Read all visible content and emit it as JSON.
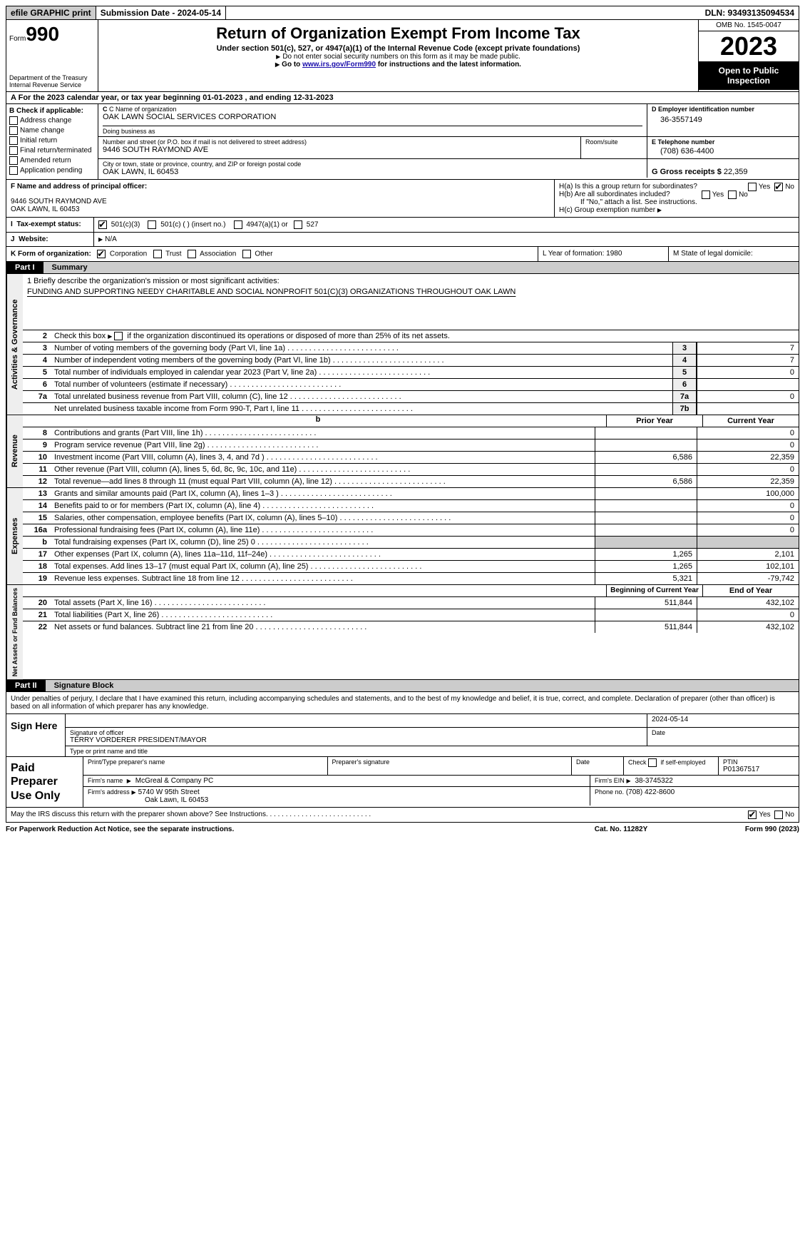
{
  "colors": {
    "black": "#000000",
    "white": "#ffffff",
    "shade": "#cccccc",
    "lightshade": "#eeeeee",
    "link": "#1a0dab"
  },
  "topbar": {
    "efile": "efile GRAPHIC print",
    "submission": "Submission Date - 2024-05-14",
    "dln": "DLN: 93493135094534"
  },
  "header": {
    "form_prefix": "Form",
    "form_num": "990",
    "dept": "Department of the Treasury Internal Revenue Service",
    "title": "Return of Organization Exempt From Income Tax",
    "subtitle": "Under section 501(c), 527, or 4947(a)(1) of the Internal Revenue Code (except private foundations)",
    "note1": "Do not enter social security numbers on this form as it may be made public.",
    "note2_prefix": "Go to ",
    "note2_link": "www.irs.gov/Form990",
    "note2_suffix": " for instructions and the latest information.",
    "omb": "OMB No. 1545-0047",
    "year": "2023",
    "open": "Open to Public Inspection"
  },
  "lineA": "For the 2023 calendar year, or tax year beginning 01-01-2023   , and ending 12-31-2023",
  "boxB": {
    "label": "B Check if applicable:",
    "items": [
      "Address change",
      "Name change",
      "Initial return",
      "Final return/terminated",
      "Amended return",
      "Application pending"
    ]
  },
  "boxC": {
    "name_label": "C Name of organization",
    "name": "OAK LAWN SOCIAL SERVICES CORPORATION",
    "dba_label": "Doing business as",
    "dba": "",
    "street_label": "Number and street (or P.O. box if mail is not delivered to street address)",
    "room_label": "Room/suite",
    "street": "9446 SOUTH RAYMOND AVE",
    "city_label": "City or town, state or province, country, and ZIP or foreign postal code",
    "city": "OAK LAWN, IL  60453"
  },
  "boxD": {
    "label": "D Employer identification number",
    "value": "36-3557149"
  },
  "boxE": {
    "label": "E Telephone number",
    "value": "(708) 636-4400"
  },
  "boxG": {
    "label": "G Gross receipts $",
    "value": "22,359"
  },
  "boxF": {
    "label": "F  Name and address of principal officer:",
    "name": "",
    "addr1": "9446 SOUTH RAYMOND AVE",
    "addr2": "OAK LAWN, IL  60453"
  },
  "boxH": {
    "a": "H(a)  Is this a group return for subordinates?",
    "a_yes": false,
    "a_no": true,
    "b": "H(b)  Are all subordinates included?",
    "b_note": "If \"No,\" attach a list. See instructions.",
    "c": "H(c)  Group exemption number"
  },
  "taxExempt": {
    "label": "Tax-exempt status:",
    "opt1": "501(c)(3)",
    "opt1_checked": true,
    "opt2": "501(c) (  ) (insert no.)",
    "opt3": "4947(a)(1) or",
    "opt4": "527"
  },
  "website": {
    "label": "Website:",
    "value": "N/A"
  },
  "lineK": {
    "label": "K Form of organization:",
    "opts": [
      "Corporation",
      "Trust",
      "Association",
      "Other"
    ],
    "checked": "Corporation",
    "L": "L Year of formation: 1980",
    "M": "M State of legal domicile:"
  },
  "partI": {
    "tab": "Part I",
    "title": "Summary"
  },
  "vtabs": {
    "a": "Activities & Governance",
    "r": "Revenue",
    "e": "Expenses",
    "n": "Net Assets or Fund Balances"
  },
  "summary": {
    "l1_label": "1  Briefly describe the organization's mission or most significant activities:",
    "l1_text": "FUNDING AND SUPPORTING NEEDY CHARITABLE AND SOCIAL NONPROFIT 501(C)(3) ORGANIZATIONS THROUGHOUT OAK LAWN",
    "l2": "Check this box      if the organization discontinued its operations or disposed of more than 25% of its net assets.",
    "rows_gov": [
      {
        "n": "3",
        "d": "Number of voting members of the governing body (Part VI, line 1a)",
        "idx": "3",
        "v": "7"
      },
      {
        "n": "4",
        "d": "Number of independent voting members of the governing body (Part VI, line 1b)",
        "idx": "4",
        "v": "7"
      },
      {
        "n": "5",
        "d": "Total number of individuals employed in calendar year 2023 (Part V, line 2a)",
        "idx": "5",
        "v": "0"
      },
      {
        "n": "6",
        "d": "Total number of volunteers (estimate if necessary)",
        "idx": "6",
        "v": ""
      },
      {
        "n": "7a",
        "d": "Total unrelated business revenue from Part VIII, column (C), line 12",
        "idx": "7a",
        "v": "0"
      },
      {
        "n": "",
        "d": "Net unrelated business taxable income from Form 990-T, Part I, line 11",
        "idx": "7b",
        "v": ""
      }
    ],
    "col_hdr": {
      "b": "b",
      "py": "Prior Year",
      "cy": "Current Year"
    },
    "rows_rev": [
      {
        "n": "8",
        "d": "Contributions and grants (Part VIII, line 1h)",
        "py": "",
        "cy": "0"
      },
      {
        "n": "9",
        "d": "Program service revenue (Part VIII, line 2g)",
        "py": "",
        "cy": "0"
      },
      {
        "n": "10",
        "d": "Investment income (Part VIII, column (A), lines 3, 4, and 7d )",
        "py": "6,586",
        "cy": "22,359"
      },
      {
        "n": "11",
        "d": "Other revenue (Part VIII, column (A), lines 5, 6d, 8c, 9c, 10c, and 11e)",
        "py": "",
        "cy": "0"
      },
      {
        "n": "12",
        "d": "Total revenue—add lines 8 through 11 (must equal Part VIII, column (A), line 12)",
        "py": "6,586",
        "cy": "22,359"
      }
    ],
    "rows_exp": [
      {
        "n": "13",
        "d": "Grants and similar amounts paid (Part IX, column (A), lines 1–3 )",
        "py": "",
        "cy": "100,000"
      },
      {
        "n": "14",
        "d": "Benefits paid to or for members (Part IX, column (A), line 4)",
        "py": "",
        "cy": "0"
      },
      {
        "n": "15",
        "d": "Salaries, other compensation, employee benefits (Part IX, column (A), lines 5–10)",
        "py": "",
        "cy": "0"
      },
      {
        "n": "16a",
        "d": "Professional fundraising fees (Part IX, column (A), line 11e)",
        "py": "",
        "cy": "0"
      },
      {
        "n": "b",
        "d": "Total fundraising expenses (Part IX, column (D), line 25) 0",
        "py": "shade",
        "cy": "shade"
      },
      {
        "n": "17",
        "d": "Other expenses (Part IX, column (A), lines 11a–11d, 11f–24e)",
        "py": "1,265",
        "cy": "2,101"
      },
      {
        "n": "18",
        "d": "Total expenses. Add lines 13–17 (must equal Part IX, column (A), line 25)",
        "py": "1,265",
        "cy": "102,101"
      },
      {
        "n": "19",
        "d": "Revenue less expenses. Subtract line 18 from line 12",
        "py": "5,321",
        "cy": "-79,742"
      }
    ],
    "col_hdr2": {
      "py": "Beginning of Current Year",
      "cy": "End of Year"
    },
    "rows_net": [
      {
        "n": "20",
        "d": "Total assets (Part X, line 16)",
        "py": "511,844",
        "cy": "432,102"
      },
      {
        "n": "21",
        "d": "Total liabilities (Part X, line 26)",
        "py": "",
        "cy": "0"
      },
      {
        "n": "22",
        "d": "Net assets or fund balances. Subtract line 21 from line 20",
        "py": "511,844",
        "cy": "432,102"
      }
    ]
  },
  "partII": {
    "tab": "Part II",
    "title": "Signature Block"
  },
  "penalties": "Under penalties of perjury, I declare that I have examined this return, including accompanying schedules and statements, and to the best of my knowledge and belief, it is true, correct, and complete. Declaration of preparer (other than officer) is based on all information of which preparer has any knowledge.",
  "sign": {
    "label": "Sign Here",
    "date": "2024-05-14",
    "sig_label": "Signature of officer",
    "officer": "TERRY VORDERER  PRESIDENT/MAYOR",
    "name_label": "Type or print name and title",
    "date_label": "Date"
  },
  "preparer": {
    "label": "Paid Preparer Use Only",
    "h1": "Print/Type preparer's name",
    "h2": "Preparer's signature",
    "h3": "Date",
    "h4": "Check        if self-employed",
    "h5": "PTIN",
    "ptin": "P01367517",
    "firm_name_label": "Firm's name",
    "firm_name": "McGreal & Company PC",
    "firm_ein_label": "Firm's EIN",
    "firm_ein": "38-3745322",
    "firm_addr_label": "Firm's address",
    "firm_addr1": "5740 W 95th Street",
    "firm_addr2": "Oak Lawn, IL  60453",
    "phone_label": "Phone no.",
    "phone": "(708) 422-8600"
  },
  "discuss": {
    "q": "May the IRS discuss this return with the preparer shown above? See Instructions.",
    "yes": true,
    "no": false
  },
  "footer": {
    "l": "For Paperwork Reduction Act Notice, see the separate instructions.",
    "c": "Cat. No. 11282Y",
    "r": "Form 990 (2023)"
  }
}
